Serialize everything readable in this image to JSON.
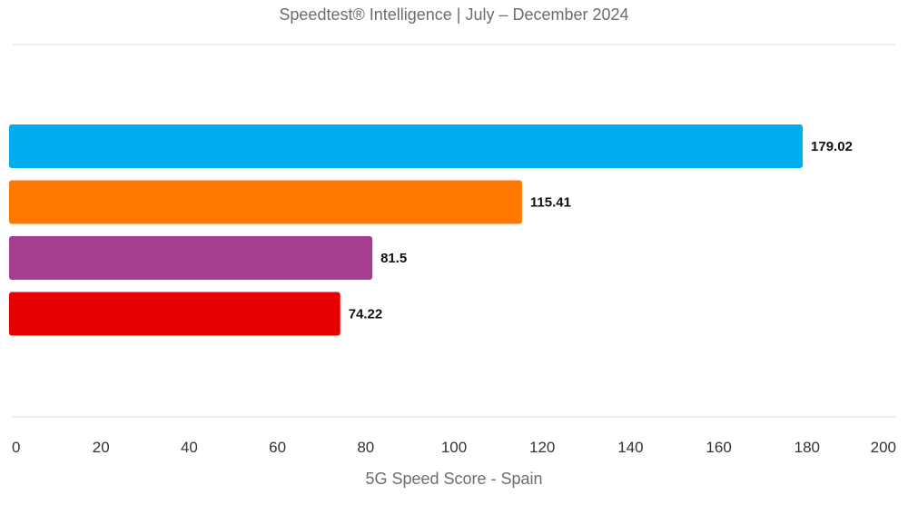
{
  "chart_data": {
    "type": "bar",
    "orientation": "horizontal",
    "subtitle": "Speedtest® Intelligence | July – December 2024",
    "xlabel": "5G Speed Score - Spain",
    "xlim": [
      0,
      200
    ],
    "xticks": [
      0,
      20,
      40,
      60,
      80,
      100,
      120,
      140,
      160,
      180,
      200
    ],
    "grid": false,
    "legend": "none",
    "bars": [
      {
        "value": 179.02,
        "label": "179.02",
        "color": "#00aeef"
      },
      {
        "value": 115.41,
        "label": "115.41",
        "color": "#ff7800"
      },
      {
        "value": 81.5,
        "label": "81.5",
        "color": "#a63d8f"
      },
      {
        "value": 74.22,
        "label": "74.22",
        "color": "#e60000"
      }
    ]
  }
}
